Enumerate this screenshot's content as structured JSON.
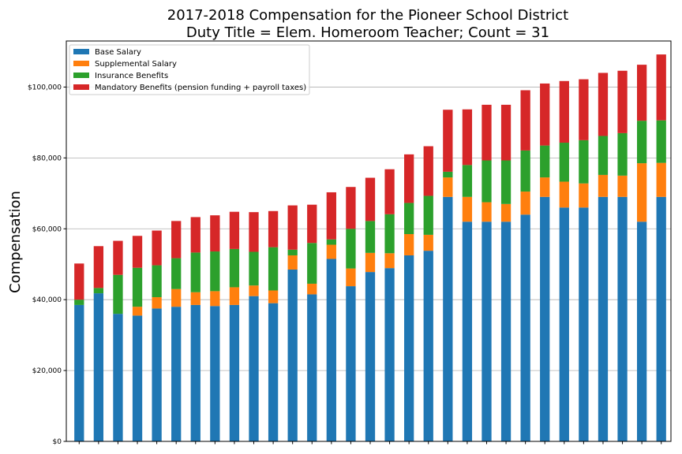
{
  "chart_data": {
    "type": "bar",
    "stacked": true,
    "title": "2017-2018 Compensation for the Pioneer School District",
    "subtitle": "Duty Title = Elem. Homeroom Teacher; Count = 31",
    "xlabel": "",
    "ylabel": "Compensation",
    "ylim": [
      0,
      113000
    ],
    "yticks": [
      0,
      20000,
      40000,
      60000,
      80000,
      100000
    ],
    "ytick_labels": [
      "$0",
      "$20,000",
      "$40,000",
      "$60,000",
      "$80,000",
      "$100,000"
    ],
    "grid": "horizontal",
    "legend_position": "top-left",
    "series": [
      {
        "name": "Base Salary",
        "color": "#1f77b4",
        "values": [
          38500,
          41800,
          36000,
          35500,
          37500,
          38000,
          38500,
          38200,
          38500,
          41000,
          39000,
          48500,
          41500,
          51500,
          43800,
          47800,
          48900,
          52500,
          53800,
          69000,
          62000,
          62000,
          62000,
          64000,
          69000,
          66000,
          66000,
          69000,
          69000,
          62000,
          69000
        ]
      },
      {
        "name": "Supplemental Salary",
        "color": "#ff7f0e",
        "values": [
          0,
          0,
          0,
          2500,
          3200,
          5000,
          3600,
          4200,
          5000,
          3000,
          3600,
          4000,
          3000,
          4000,
          5000,
          5400,
          4200,
          6000,
          4500,
          5500,
          7000,
          5500,
          5000,
          6500,
          5500,
          7300,
          6800,
          6200,
          6000,
          16500,
          9600
        ]
      },
      {
        "name": "Insurance Benefits",
        "color": "#2ca02c",
        "values": [
          1500,
          1500,
          11000,
          11000,
          9000,
          8700,
          11200,
          11200,
          10800,
          9500,
          12200,
          1600,
          11500,
          1500,
          11200,
          9000,
          11000,
          8800,
          11000,
          1600,
          9000,
          11800,
          12300,
          11600,
          9000,
          11000,
          12200,
          11000,
          12000,
          12000,
          12000
        ]
      },
      {
        "name": "Mandatory Benefits (pension funding + payroll taxes)",
        "color": "#d62728",
        "values": [
          10200,
          11800,
          9600,
          9000,
          9800,
          10500,
          10000,
          10200,
          10500,
          11200,
          10200,
          12500,
          10800,
          13300,
          11800,
          12200,
          12700,
          13700,
          14000,
          17500,
          15700,
          15700,
          15700,
          17000,
          17500,
          17400,
          17200,
          17800,
          17600,
          15800,
          18600
        ]
      }
    ]
  }
}
